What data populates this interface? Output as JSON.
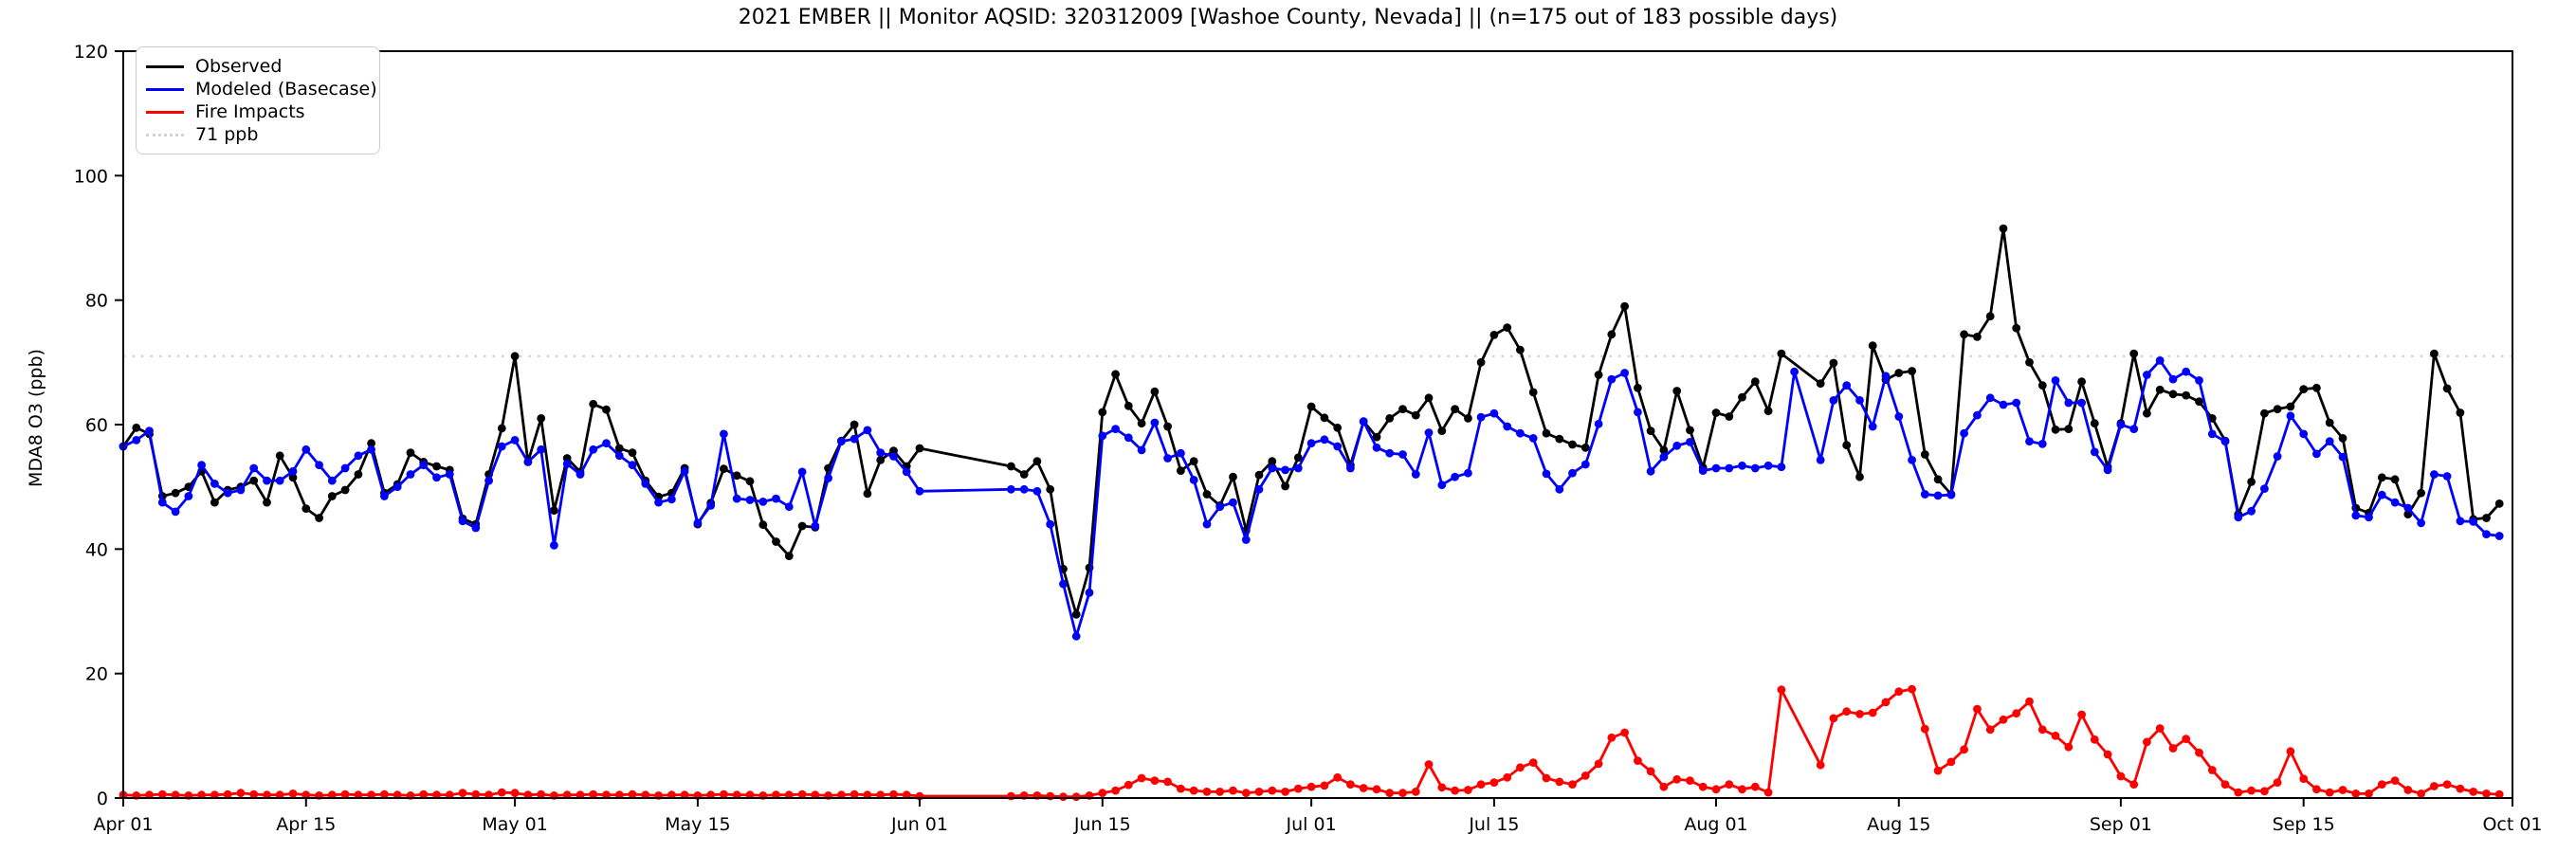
{
  "title": "2021 EMBER || Monitor AQSID: 320312009 [Washoe County, Nevada] || (n=175 out of 183 possible days)",
  "ylabel": "MDA8 O3 (ppb)",
  "legend": {
    "observed_label": "Observed",
    "modeled_label": "Modeled (Basecase)",
    "fire_label": "Fire Impacts",
    "threshold_label": "71 ppb"
  },
  "colors": {
    "observed": "#000000",
    "modeled": "#0000ff",
    "fire": "#ff0000",
    "threshold": "#d3d3d3",
    "axis": "#000000"
  },
  "chart_data": {
    "type": "line",
    "title": "2021 EMBER || Monitor AQSID: 320312009 [Washoe County, Nevada] || (n=175 out of 183 possible days)",
    "xlabel": "",
    "ylabel": "MDA8 O3 (ppb)",
    "ylim": [
      0,
      120
    ],
    "yticks": [
      0,
      20,
      40,
      60,
      80,
      100,
      120
    ],
    "grid": false,
    "legend_position": "upper left",
    "threshold_ppb": 71,
    "start_date": "2021-04-01",
    "n_days": 183,
    "n_observed": 175,
    "missing_observed_dates": [
      "Jun 02",
      "Jun 03",
      "Jun 04",
      "Jun 05",
      "Jun 06",
      "Jun 07",
      "Aug 07",
      "Aug 08"
    ],
    "xticks": [
      {
        "label": "Apr 01",
        "day": 0
      },
      {
        "label": "Apr 15",
        "day": 14
      },
      {
        "label": "May 01",
        "day": 30
      },
      {
        "label": "May 15",
        "day": 44
      },
      {
        "label": "Jun 01",
        "day": 61
      },
      {
        "label": "Jun 15",
        "day": 75
      },
      {
        "label": "Jul 01",
        "day": 91
      },
      {
        "label": "Jul 15",
        "day": 105
      },
      {
        "label": "Aug 01",
        "day": 122
      },
      {
        "label": "Aug 15",
        "day": 136
      },
      {
        "label": "Sep 01",
        "day": 153
      },
      {
        "label": "Sep 15",
        "day": 167
      },
      {
        "label": "Oct 01",
        "day": 183
      }
    ],
    "series": [
      {
        "name": "Observed",
        "color": "#000000",
        "values": [
          56.5,
          59.5,
          58.5,
          48.5,
          49,
          50,
          52.5,
          47.5,
          49.5,
          50,
          51,
          47.5,
          55,
          51.5,
          46.5,
          45,
          48.5,
          49.5,
          52,
          57,
          49,
          50.4,
          55.5,
          54,
          53.3,
          52.7,
          44.9,
          44,
          52,
          59.4,
          71,
          54,
          61,
          46.2,
          54.6,
          52.4,
          63.3,
          62.4,
          56.2,
          55.5,
          51,
          48.4,
          49,
          53,
          44,
          47.4,
          52.9,
          51.8,
          50.9,
          43.9,
          41.2,
          38.9,
          43.7,
          43.5,
          53,
          57.4,
          60,
          48.9,
          54.3,
          55.8,
          53.3,
          56.2,
          null,
          null,
          null,
          null,
          null,
          null,
          53.3,
          52,
          54.1,
          49.6,
          36.8,
          29.5,
          37,
          62,
          68.1,
          63,
          60.2,
          65.3,
          59.7,
          52.6,
          54.1,
          48.8,
          47,
          51.6,
          43,
          51.9,
          54.1,
          50.1,
          54.7,
          62.9,
          61.1,
          59.5,
          53.5,
          60.5,
          58,
          61,
          62.5,
          61.5,
          64.3,
          59,
          62.5,
          61,
          70,
          74.4,
          75.6,
          72,
          65.2,
          58.6,
          57.7,
          56.8,
          56.3,
          68,
          74.5,
          79,
          65.9,
          59,
          55.9,
          65.4,
          59.1,
          53.1,
          61.9,
          61.3,
          64.4,
          66.9,
          62.2,
          71.4,
          null,
          null,
          66.6,
          69.9,
          56.7,
          51.6,
          72.7,
          67.2,
          68.3,
          68.6,
          55.2,
          51.2,
          48.8,
          74.5,
          74.1,
          77.4,
          91.5,
          75.5,
          70,
          66.3,
          59.2,
          59.3,
          66.9,
          60.2,
          53.2,
          60.2,
          71.4,
          61.8,
          65.6,
          64.9,
          64.7,
          63.7,
          61,
          57.4,
          45.6,
          50.8,
          61.8,
          62.5,
          62.9,
          65.7,
          65.9,
          60.3,
          57.8,
          46.6,
          45.8,
          51.5,
          51.2,
          45.6,
          49,
          71.4,
          65.8,
          61.9,
          44.8,
          45,
          47.3
        ]
      },
      {
        "name": "Modeled (Basecase)",
        "color": "#0000ff",
        "values": [
          56.5,
          57.5,
          59,
          47.5,
          46,
          48.5,
          53.5,
          50.5,
          49,
          49.5,
          53,
          51,
          51,
          52.5,
          56,
          53.5,
          51,
          53,
          55,
          56,
          48.5,
          50,
          52,
          53.5,
          51.5,
          52,
          44.5,
          43.4,
          51,
          56.5,
          57.5,
          54,
          56,
          40.6,
          53.7,
          52,
          56,
          57,
          55,
          53.5,
          50.5,
          47.5,
          48,
          52.5,
          44.2,
          47,
          58.5,
          48.1,
          47.9,
          47.6,
          48.1,
          46.8,
          52.4,
          43.7,
          51.4,
          57.3,
          57.7,
          59.1,
          55.5,
          54.9,
          52.4,
          49.3,
          null,
          null,
          null,
          null,
          null,
          null,
          49.6,
          49.6,
          49.3,
          44,
          34.4,
          26,
          33,
          58.2,
          59.3,
          57.9,
          55.9,
          60.3,
          54.6,
          55.4,
          51.1,
          44,
          46.8,
          47.5,
          41.5,
          49.6,
          53,
          52.7,
          53,
          57,
          57.6,
          56.5,
          53,
          60.5,
          56.3,
          55.4,
          55.2,
          52,
          58.7,
          50.3,
          51.6,
          52.2,
          61.2,
          61.8,
          59.7,
          58.6,
          57.8,
          52.1,
          49.6,
          52.2,
          53.6,
          60.1,
          67.3,
          68.3,
          62,
          52.5,
          54.8,
          56.6,
          57.2,
          52.6,
          53,
          53,
          53.4,
          53,
          53.4,
          53.2,
          68.5,
          null,
          54.3,
          63.9,
          66.3,
          63.9,
          59.7,
          67.8,
          61.3,
          54.3,
          48.8,
          48.6,
          48.7,
          58.6,
          61.5,
          64.3,
          63.2,
          63.5,
          57.3,
          56.9,
          67.1,
          63.5,
          63.5,
          55.6,
          52.7,
          60,
          59.3,
          68,
          70.3,
          67.3,
          68.5,
          67.1,
          58.5,
          57.3,
          45.1,
          46.1,
          49.7,
          54.9,
          61.4,
          58.5,
          55.3,
          57.3,
          54.8,
          45.4,
          45.1,
          48.7,
          47.5,
          46.6,
          44.2,
          52,
          51.7,
          44.5,
          44.4,
          42.4,
          42.1
        ]
      },
      {
        "name": "Fire Impacts",
        "color": "#ff0000",
        "values": [
          0.5,
          0.4,
          0.5,
          0.6,
          0.5,
          0.4,
          0.5,
          0.5,
          0.6,
          0.8,
          0.6,
          0.5,
          0.5,
          0.7,
          0.5,
          0.4,
          0.5,
          0.6,
          0.5,
          0.5,
          0.6,
          0.5,
          0.4,
          0.6,
          0.5,
          0.5,
          0.8,
          0.6,
          0.5,
          0.9,
          0.8,
          0.5,
          0.6,
          0.4,
          0.5,
          0.5,
          0.6,
          0.5,
          0.5,
          0.6,
          0.5,
          0.4,
          0.5,
          0.5,
          0.4,
          0.5,
          0.6,
          0.5,
          0.5,
          0.4,
          0.5,
          0.5,
          0.6,
          0.5,
          0.4,
          0.5,
          0.6,
          0.5,
          0.5,
          0.6,
          0.5,
          0.3,
          null,
          null,
          null,
          null,
          null,
          null,
          0.3,
          0.4,
          0.4,
          0.3,
          0.2,
          0.2,
          0.4,
          0.8,
          1.2,
          2.1,
          3.2,
          2.8,
          2.6,
          1.5,
          1.2,
          1,
          1,
          1.2,
          0.8,
          1,
          1.2,
          1,
          1.5,
          1.8,
          2,
          3.3,
          2.2,
          1.6,
          1.4,
          0.8,
          0.8,
          1,
          5.4,
          1.7,
          1.2,
          1.3,
          2.2,
          2.5,
          3.3,
          4.9,
          5.7,
          3.2,
          2.6,
          2.2,
          3.6,
          5.5,
          9.7,
          10.5,
          6,
          4.3,
          1.8,
          3,
          2.8,
          1.8,
          1.4,
          2.2,
          1.4,
          1.8,
          0.9,
          17.4,
          null,
          null,
          5.3,
          12.8,
          13.9,
          13.5,
          13.7,
          15.4,
          17.1,
          17.5,
          11.1,
          4.4,
          5.8,
          7.8,
          14.3,
          11,
          12.6,
          13.6,
          15.5,
          11,
          10,
          8.2,
          13.4,
          9.4,
          7,
          3.5,
          2.2,
          9,
          11.2,
          8,
          9.5,
          7.3,
          4.5,
          2.2,
          0.9,
          1.2,
          1.1,
          2.5,
          7.5,
          3.1,
          1.4,
          0.9,
          1.3,
          0.7,
          0.7,
          2.2,
          2.8,
          1.3,
          0.7,
          1.9,
          2.2,
          1.5,
          1,
          0.7,
          0.6
        ]
      }
    ]
  }
}
